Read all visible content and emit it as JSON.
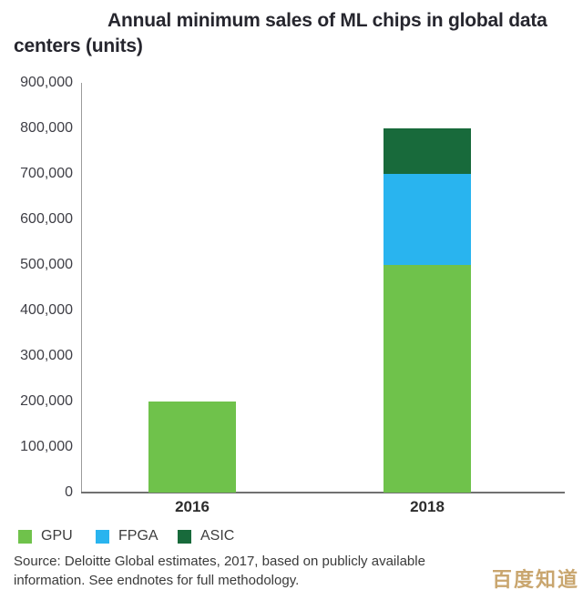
{
  "title": {
    "full": "Annual minimum sales of ML chips in global data centers (units)",
    "line1": "Annual minimum sales of ML chips in global data",
    "line2": "centers (units)"
  },
  "source": {
    "line1": "Source: Deloitte Global estimates, 2017, based on publicly available",
    "line2": "information. See endnotes for full methodology."
  },
  "watermark": "百度知道",
  "colors": {
    "gpu": "#6FC24B",
    "fpga": "#29B4EF",
    "asic": "#186A3B",
    "y_axis_line": "#9B9B9B",
    "x_axis_line": "#717171",
    "title_text": "#26262E",
    "tick_text": "#3F3F46",
    "source_text": "#3A3A3A",
    "watermark_text": "#C9A66F",
    "background": "#FFFFFF"
  },
  "chart_data": {
    "type": "bar",
    "stacked": true,
    "title": "Annual minimum sales of ML chips in global data centers (units)",
    "xlabel": "",
    "ylabel": "",
    "categories": [
      "2016",
      "2018"
    ],
    "series": [
      {
        "name": "GPU",
        "color": "#6FC24B",
        "values": [
          200000,
          500000
        ]
      },
      {
        "name": "FPGA",
        "color": "#29B4EF",
        "values": [
          0,
          200000
        ]
      },
      {
        "name": "ASIC",
        "color": "#186A3B",
        "values": [
          0,
          100000
        ]
      }
    ],
    "totals": [
      200000,
      800000
    ],
    "ylim": [
      0,
      900000
    ],
    "y_tick_step": 100000,
    "y_tick_labels": [
      "0",
      "100,000",
      "200,000",
      "300,000",
      "400,000",
      "500,000",
      "600,000",
      "700,000",
      "800,000",
      "900,000"
    ],
    "grid": false,
    "legend_position": "bottom-left",
    "legend_entries": [
      "GPU",
      "FPGA",
      "ASIC"
    ]
  }
}
